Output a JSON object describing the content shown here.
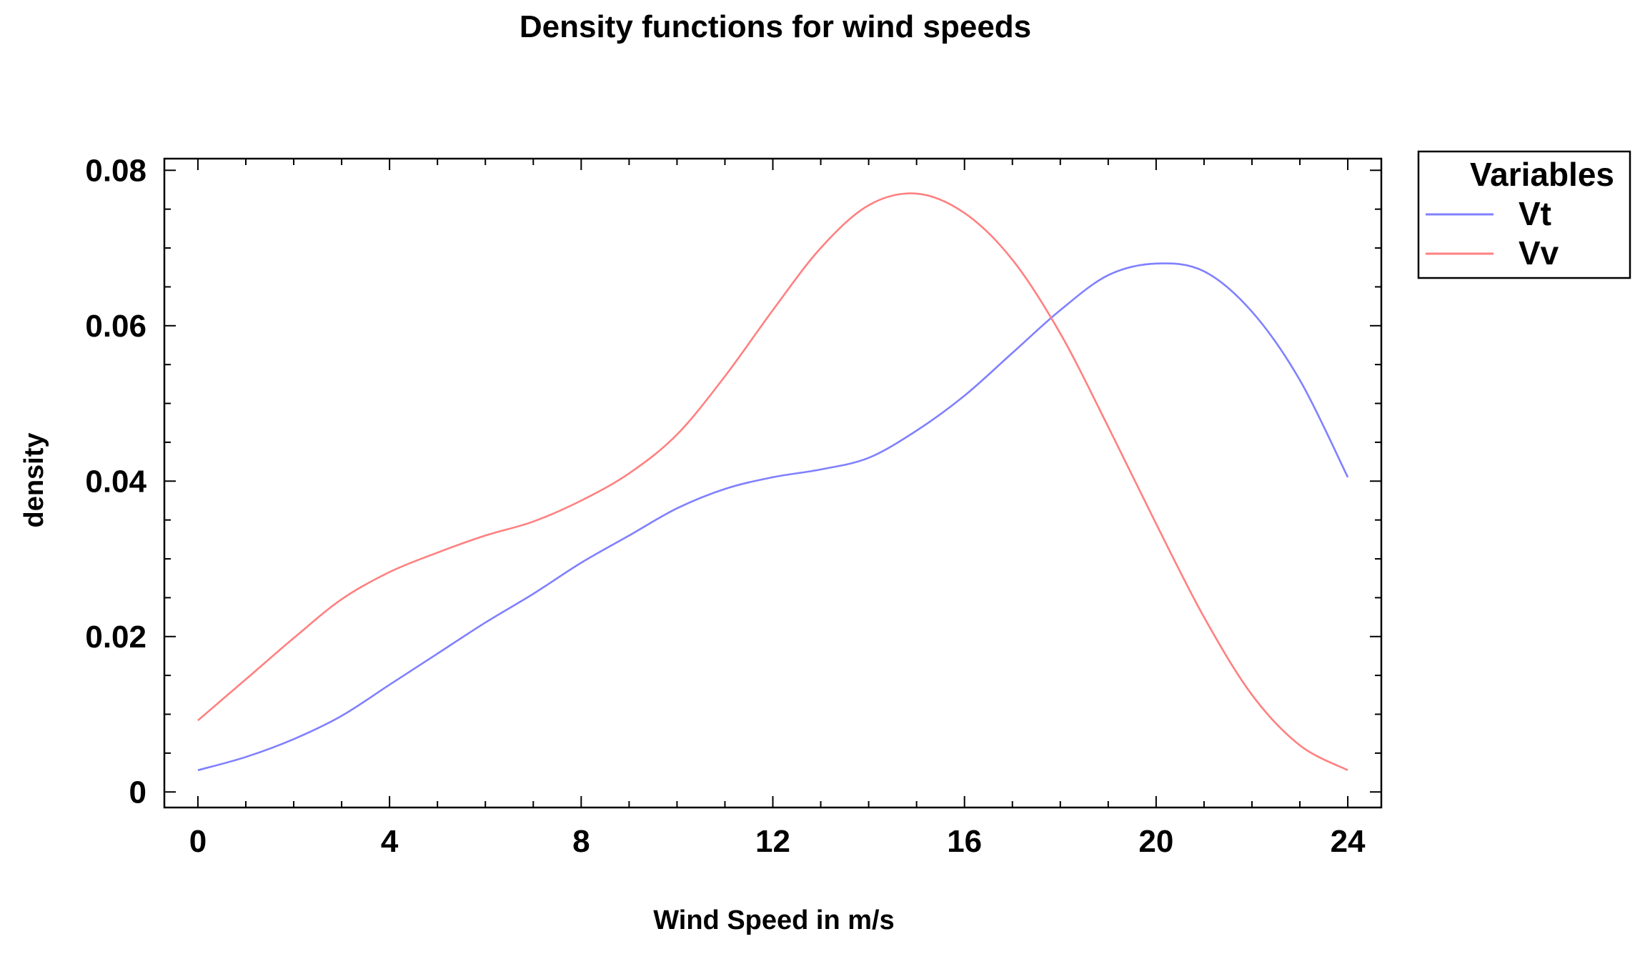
{
  "chart_data": {
    "type": "line",
    "title": "Density functions for wind speeds",
    "xlabel": "Wind Speed in m/s",
    "ylabel": "density",
    "xlim": [
      -0.7,
      24.7
    ],
    "ylim": [
      -0.002,
      0.0815
    ],
    "x_ticks": [
      0,
      4,
      8,
      12,
      16,
      20,
      24
    ],
    "y_ticks": [
      0,
      0.02,
      0.04,
      0.06,
      0.08
    ],
    "x_tick_labels": [
      "0",
      "4",
      "8",
      "12",
      "16",
      "20",
      "24"
    ],
    "y_tick_labels": [
      "0",
      "0.02",
      "0.04",
      "0.06",
      "0.08"
    ],
    "grid": false,
    "legend": {
      "title": "Variables",
      "placement": "top-right outside"
    },
    "x": [
      0,
      1,
      2,
      3,
      4,
      5,
      6,
      7,
      8,
      9,
      10,
      11,
      12,
      13,
      14,
      15,
      16,
      17,
      18,
      19,
      20,
      21,
      22,
      23,
      24
    ],
    "series": [
      {
        "name": "Vt",
        "color": "#8080ff",
        "values": [
          0.0028,
          0.0045,
          0.0068,
          0.0098,
          0.0138,
          0.0178,
          0.0218,
          0.0255,
          0.0295,
          0.033,
          0.0365,
          0.039,
          0.0405,
          0.0415,
          0.043,
          0.0465,
          0.051,
          0.0565,
          0.062,
          0.0665,
          0.068,
          0.067,
          0.0618,
          0.053,
          0.0405
        ]
      },
      {
        "name": "Vv",
        "color": "#ff8080",
        "values": [
          0.0092,
          0.0145,
          0.0198,
          0.0248,
          0.0283,
          0.0308,
          0.033,
          0.0348,
          0.0375,
          0.041,
          0.046,
          0.0535,
          0.062,
          0.07,
          0.0755,
          0.077,
          0.0745,
          0.0685,
          0.059,
          0.047,
          0.0345,
          0.0225,
          0.0125,
          0.006,
          0.0028
        ]
      }
    ]
  }
}
